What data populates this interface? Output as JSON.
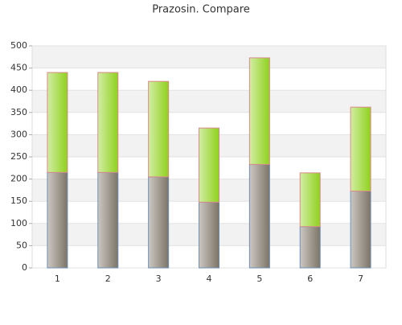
{
  "chart_data": {
    "type": "stacked_bar",
    "title": "Prazosin. Compare",
    "categories": [
      "1",
      "2",
      "3",
      "4",
      "5",
      "6",
      "7"
    ],
    "series": [
      {
        "color": "#7d7466",
        "values": [
          215,
          215,
          205,
          148,
          233,
          93,
          173
        ]
      },
      {
        "color": "#8fd11c",
        "values": [
          225,
          225,
          215,
          167,
          240,
          121,
          189
        ]
      }
    ],
    "ylim": [
      0,
      500
    ],
    "yticks": [
      0,
      50,
      100,
      150,
      200,
      250,
      300,
      350,
      400,
      450,
      500
    ],
    "grid": true
  }
}
